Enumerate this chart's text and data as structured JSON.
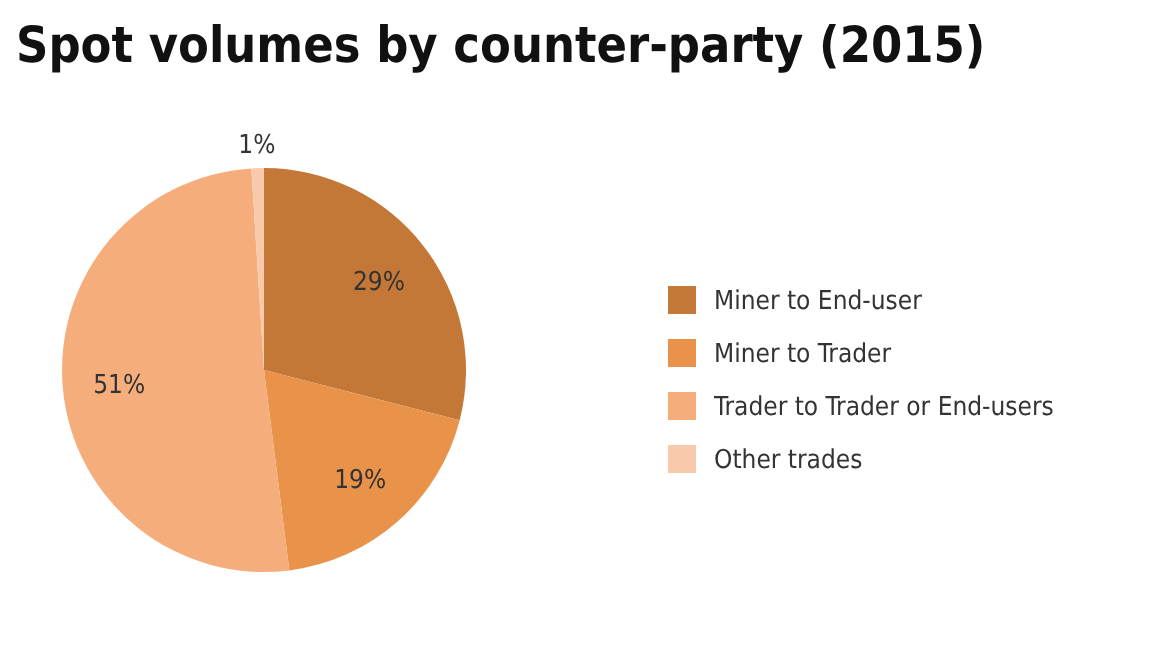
{
  "chart_data": {
    "type": "pie",
    "title": "Spot volumes by counter-party (2015)",
    "categories": [
      "Miner to End-user",
      "Miner to Trader",
      "Trader to Trader or End-users",
      "Other trades"
    ],
    "values": [
      29,
      19,
      51,
      1
    ],
    "colors": [
      "#c47838",
      "#e8924a",
      "#f5ad7c",
      "#f8c9aa"
    ],
    "value_labels": [
      "29%",
      "19%",
      "51%",
      "1%"
    ],
    "legend": "right"
  }
}
